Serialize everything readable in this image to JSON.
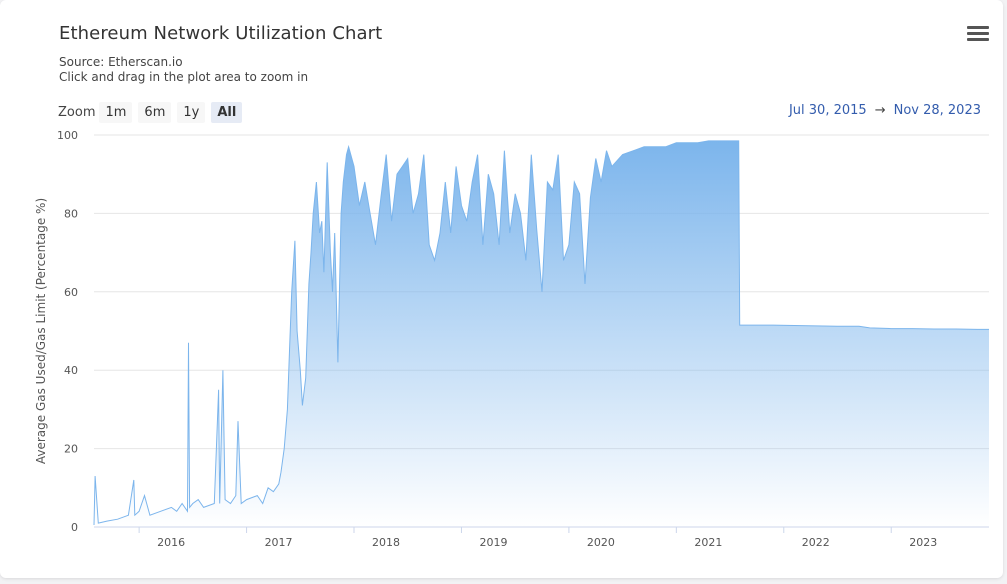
{
  "header": {
    "title": "Ethereum Network Utilization Chart",
    "subtitle_source": "Source: Etherscan.io",
    "subtitle_hint": "Click and drag in the plot area to zoom in"
  },
  "zoom": {
    "label": "Zoom",
    "buttons": [
      "1m",
      "6m",
      "1y",
      "All"
    ],
    "active": "All"
  },
  "range": {
    "from": "Jul 30, 2015",
    "arrow": "→",
    "to": "Nov 28, 2023"
  },
  "menu_icon": "hamburger-menu-icon",
  "colors": {
    "line": "#7cb5ec",
    "range_text": "#335cad"
  },
  "chart_data": {
    "type": "area",
    "title": "Ethereum Network Utilization Chart",
    "ylabel": "Average Gas Used/Gas Limit (Percentage %)",
    "xlabel": "",
    "ylim": [
      0,
      100
    ],
    "yticks": [
      0,
      20,
      40,
      60,
      80,
      100
    ],
    "xticks": [
      "2016",
      "2017",
      "2018",
      "2019",
      "2020",
      "2021",
      "2022",
      "2023"
    ],
    "grid": true,
    "legend": "none",
    "series": [
      {
        "values_note": "",
        "x": [
          2015.58,
          2015.59,
          2015.62,
          2015.7,
          2015.8,
          2015.9,
          2015.95,
          2015.96,
          2016.0,
          2016.05,
          2016.1,
          2016.2,
          2016.3,
          2016.35,
          2016.4,
          2016.45,
          2016.46,
          2016.47,
          2016.5,
          2016.55,
          2016.6,
          2016.7,
          2016.74,
          2016.75,
          2016.78,
          2016.8,
          2016.85,
          2016.9,
          2016.92,
          2016.95,
          2017.0,
          2017.1,
          2017.15,
          2017.2,
          2017.25,
          2017.3,
          2017.32,
          2017.35,
          2017.38,
          2017.4,
          2017.42,
          2017.45,
          2017.47,
          2017.5,
          2017.52,
          2017.55,
          2017.58,
          2017.6,
          2017.62,
          2017.65,
          2017.68,
          2017.7,
          2017.72,
          2017.75,
          2017.78,
          2017.8,
          2017.82,
          2017.85,
          2017.88,
          2017.9,
          2017.93,
          2017.95,
          2018.0,
          2018.05,
          2018.1,
          2018.15,
          2018.2,
          2018.25,
          2018.3,
          2018.35,
          2018.4,
          2018.45,
          2018.5,
          2018.55,
          2018.6,
          2018.65,
          2018.7,
          2018.75,
          2018.8,
          2018.85,
          2018.9,
          2018.95,
          2019.0,
          2019.05,
          2019.1,
          2019.15,
          2019.2,
          2019.25,
          2019.3,
          2019.35,
          2019.4,
          2019.45,
          2019.5,
          2019.55,
          2019.6,
          2019.65,
          2019.7,
          2019.75,
          2019.8,
          2019.85,
          2019.9,
          2019.95,
          2020.0,
          2020.05,
          2020.1,
          2020.15,
          2020.2,
          2020.25,
          2020.3,
          2020.35,
          2020.4,
          2020.5,
          2020.6,
          2020.7,
          2020.8,
          2020.9,
          2021.0,
          2021.1,
          2021.2,
          2021.3,
          2021.4,
          2021.5,
          2021.58,
          2021.59,
          2021.7,
          2021.9,
          2022.1,
          2022.3,
          2022.5,
          2022.7,
          2022.8,
          2023.0,
          2023.2,
          2023.4,
          2023.6,
          2023.8,
          2023.91
        ],
        "values": [
          0.5,
          13,
          1,
          1.5,
          2,
          3,
          12,
          3,
          4,
          8,
          3,
          4,
          5,
          4,
          6,
          4,
          47,
          5,
          6,
          7,
          5,
          6,
          35,
          6,
          40,
          7,
          6,
          8,
          27,
          6,
          7,
          8,
          6,
          10,
          9,
          11,
          14,
          20,
          30,
          45,
          60,
          73,
          50,
          40,
          31,
          38,
          62,
          70,
          80,
          88,
          75,
          78,
          65,
          93,
          70,
          60,
          75,
          42,
          80,
          88,
          95,
          97,
          92,
          82,
          88,
          80,
          72,
          84,
          95,
          78,
          90,
          92,
          94,
          80,
          85,
          95,
          72,
          68,
          75,
          88,
          75,
          92,
          82,
          78,
          88,
          95,
          72,
          90,
          85,
          72,
          96,
          75,
          85,
          80,
          68,
          95,
          76,
          60,
          88,
          86,
          95,
          68,
          72,
          88,
          85,
          62,
          84,
          94,
          88,
          96,
          92,
          95,
          96,
          97,
          97,
          97,
          98,
          98,
          98,
          98.5,
          98.5,
          98.5,
          98.5,
          51.5,
          51.5,
          51.5,
          51.4,
          51.3,
          51.2,
          51.2,
          50.8,
          50.6,
          50.6,
          50.5,
          50.5,
          50.4,
          50.4
        ]
      }
    ]
  }
}
